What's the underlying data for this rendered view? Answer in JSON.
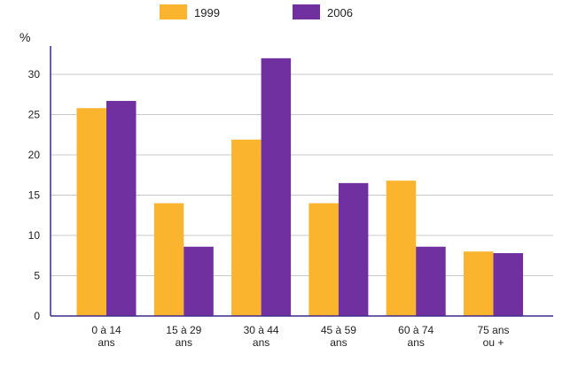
{
  "chart_data": {
    "type": "bar",
    "title": "",
    "xlabel": "",
    "ylabel": "%",
    "ylim": [
      0,
      30
    ],
    "yticks": [
      0,
      5,
      10,
      15,
      20,
      25,
      30
    ],
    "grid": true,
    "legend_position": "top",
    "categories": [
      [
        "0 à 14",
        "ans"
      ],
      [
        "15 à 29",
        "ans"
      ],
      [
        "30 à 44",
        "ans"
      ],
      [
        "45 à 59",
        "ans"
      ],
      [
        "60 à 74",
        "ans"
      ],
      [
        "75 ans",
        "ou +"
      ]
    ],
    "series": [
      {
        "name": "1999",
        "color": "#FBB42D",
        "values": [
          25.8,
          14.0,
          21.9,
          14.0,
          16.8,
          8.0
        ]
      },
      {
        "name": "2006",
        "color": "#7030A0",
        "values": [
          26.7,
          8.6,
          32.0,
          16.5,
          8.6,
          7.8
        ]
      }
    ]
  },
  "colors": {
    "axis": "#3C2A8C",
    "grid": "#C8C8C8"
  }
}
